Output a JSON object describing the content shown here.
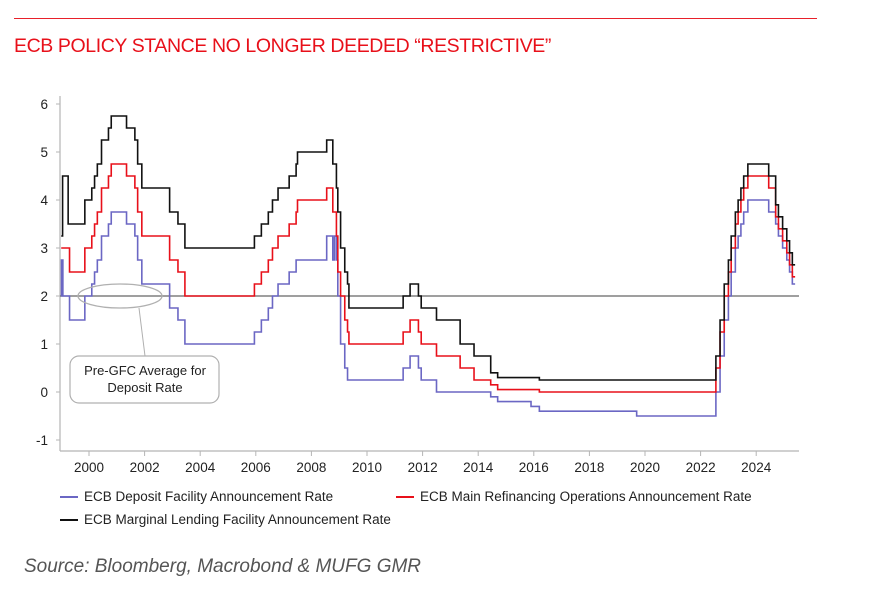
{
  "header": {
    "title": "ECB POLICY STANCE NO LONGER DEEDED “RESTRICTIVE”"
  },
  "source": "Source: Bloomberg, Macrobond & MUFG GMR",
  "annotation": {
    "line1": "Pre-GFC Average for",
    "line2": "Deposit Rate"
  },
  "chart_data": {
    "type": "line",
    "title": "ECB POLICY STANCE NO LONGER DEEDED “RESTRICTIVE”",
    "xlabel": "",
    "ylabel": "",
    "xlim": [
      1999.0,
      2025.4
    ],
    "ylim": [
      -1.3,
      6.2
    ],
    "xticks": [
      2000,
      2002,
      2004,
      2006,
      2008,
      2010,
      2012,
      2014,
      2016,
      2018,
      2020,
      2022,
      2024
    ],
    "yticks": [
      -1,
      0,
      1,
      2,
      3,
      4,
      5,
      6
    ],
    "reference_line": {
      "y": 2.0,
      "label": "Pre-GFC Average for Deposit Rate"
    },
    "legend_position": "bottom",
    "series": [
      {
        "name": "ECB Deposit Facility Announcement Rate",
        "color": "#6b67c4",
        "steps": [
          [
            1999.0,
            2.0
          ],
          [
            1999.01,
            2.75
          ],
          [
            1999.06,
            2.0
          ],
          [
            1999.3,
            1.5
          ],
          [
            1999.85,
            2.0
          ],
          [
            2000.1,
            2.25
          ],
          [
            2000.2,
            2.5
          ],
          [
            2000.3,
            2.75
          ],
          [
            2000.45,
            3.25
          ],
          [
            2000.7,
            3.5
          ],
          [
            2000.8,
            3.75
          ],
          [
            2001.35,
            3.5
          ],
          [
            2001.65,
            3.25
          ],
          [
            2001.75,
            2.75
          ],
          [
            2001.9,
            2.25
          ],
          [
            2002.9,
            1.75
          ],
          [
            2003.2,
            1.5
          ],
          [
            2003.45,
            1.0
          ],
          [
            2005.95,
            1.25
          ],
          [
            2006.2,
            1.5
          ],
          [
            2006.45,
            1.75
          ],
          [
            2006.6,
            2.0
          ],
          [
            2006.8,
            2.25
          ],
          [
            2007.2,
            2.5
          ],
          [
            2007.45,
            2.75
          ],
          [
            2008.55,
            3.25
          ],
          [
            2008.77,
            2.75
          ],
          [
            2008.83,
            3.25
          ],
          [
            2008.9,
            2.75
          ],
          [
            2008.95,
            2.0
          ],
          [
            2009.05,
            1.0
          ],
          [
            2009.2,
            0.5
          ],
          [
            2009.3,
            0.25
          ],
          [
            2011.3,
            0.5
          ],
          [
            2011.55,
            0.75
          ],
          [
            2011.85,
            0.5
          ],
          [
            2011.95,
            0.25
          ],
          [
            2012.5,
            0.0
          ],
          [
            2014.45,
            -0.1
          ],
          [
            2014.7,
            -0.2
          ],
          [
            2015.9,
            -0.3
          ],
          [
            2016.2,
            -0.4
          ],
          [
            2019.7,
            -0.5
          ],
          [
            2022.55,
            0.0
          ],
          [
            2022.7,
            0.75
          ],
          [
            2022.85,
            1.5
          ],
          [
            2023.0,
            2.0
          ],
          [
            2023.1,
            2.5
          ],
          [
            2023.25,
            3.0
          ],
          [
            2023.35,
            3.25
          ],
          [
            2023.45,
            3.5
          ],
          [
            2023.55,
            3.75
          ],
          [
            2023.7,
            4.0
          ],
          [
            2024.45,
            3.75
          ],
          [
            2024.7,
            3.5
          ],
          [
            2024.8,
            3.25
          ],
          [
            2024.95,
            3.0
          ],
          [
            2025.1,
            2.75
          ],
          [
            2025.2,
            2.5
          ],
          [
            2025.3,
            2.25
          ]
        ]
      },
      {
        "name": "ECB Main Refinancing Operations Announcement Rate",
        "color": "#e8101a",
        "steps": [
          [
            1999.0,
            3.0
          ],
          [
            1999.3,
            2.5
          ],
          [
            1999.85,
            3.0
          ],
          [
            2000.1,
            3.25
          ],
          [
            2000.2,
            3.5
          ],
          [
            2000.3,
            3.75
          ],
          [
            2000.45,
            4.25
          ],
          [
            2000.7,
            4.5
          ],
          [
            2000.8,
            4.75
          ],
          [
            2001.35,
            4.5
          ],
          [
            2001.65,
            4.25
          ],
          [
            2001.75,
            3.75
          ],
          [
            2001.9,
            3.25
          ],
          [
            2002.9,
            2.75
          ],
          [
            2003.2,
            2.5
          ],
          [
            2003.45,
            2.0
          ],
          [
            2005.95,
            2.25
          ],
          [
            2006.2,
            2.5
          ],
          [
            2006.45,
            2.75
          ],
          [
            2006.6,
            3.0
          ],
          [
            2006.8,
            3.25
          ],
          [
            2007.2,
            3.5
          ],
          [
            2007.45,
            3.75
          ],
          [
            2007.5,
            4.0
          ],
          [
            2008.55,
            4.25
          ],
          [
            2008.77,
            3.75
          ],
          [
            2008.9,
            3.25
          ],
          [
            2008.95,
            2.5
          ],
          [
            2009.05,
            2.0
          ],
          [
            2009.2,
            1.5
          ],
          [
            2009.3,
            1.25
          ],
          [
            2009.35,
            1.0
          ],
          [
            2011.3,
            1.25
          ],
          [
            2011.55,
            1.5
          ],
          [
            2011.85,
            1.25
          ],
          [
            2011.95,
            1.0
          ],
          [
            2012.5,
            0.75
          ],
          [
            2013.35,
            0.5
          ],
          [
            2013.85,
            0.25
          ],
          [
            2014.45,
            0.15
          ],
          [
            2014.7,
            0.05
          ],
          [
            2016.2,
            0.0
          ],
          [
            2022.55,
            0.5
          ],
          [
            2022.7,
            1.25
          ],
          [
            2022.85,
            2.0
          ],
          [
            2023.0,
            2.5
          ],
          [
            2023.1,
            3.0
          ],
          [
            2023.25,
            3.5
          ],
          [
            2023.35,
            3.75
          ],
          [
            2023.45,
            4.0
          ],
          [
            2023.55,
            4.25
          ],
          [
            2023.7,
            4.5
          ],
          [
            2024.45,
            4.25
          ],
          [
            2024.7,
            3.65
          ],
          [
            2024.8,
            3.4
          ],
          [
            2024.95,
            3.15
          ],
          [
            2025.1,
            2.9
          ],
          [
            2025.2,
            2.65
          ],
          [
            2025.3,
            2.4
          ]
        ]
      },
      {
        "name": "ECB Marginal Lending Facility Announcement Rate",
        "color": "#111111",
        "steps": [
          [
            1999.0,
            3.25
          ],
          [
            1999.05,
            4.5
          ],
          [
            1999.25,
            3.5
          ],
          [
            1999.85,
            4.0
          ],
          [
            2000.1,
            4.25
          ],
          [
            2000.2,
            4.5
          ],
          [
            2000.3,
            4.75
          ],
          [
            2000.45,
            5.25
          ],
          [
            2000.7,
            5.5
          ],
          [
            2000.8,
            5.75
          ],
          [
            2001.35,
            5.5
          ],
          [
            2001.65,
            5.25
          ],
          [
            2001.75,
            4.75
          ],
          [
            2001.9,
            4.25
          ],
          [
            2002.9,
            3.75
          ],
          [
            2003.2,
            3.5
          ],
          [
            2003.45,
            3.0
          ],
          [
            2005.95,
            3.25
          ],
          [
            2006.2,
            3.5
          ],
          [
            2006.45,
            3.75
          ],
          [
            2006.6,
            4.0
          ],
          [
            2006.8,
            4.25
          ],
          [
            2007.2,
            4.5
          ],
          [
            2007.45,
            4.75
          ],
          [
            2007.5,
            5.0
          ],
          [
            2008.55,
            5.25
          ],
          [
            2008.77,
            4.75
          ],
          [
            2008.9,
            4.25
          ],
          [
            2008.95,
            3.75
          ],
          [
            2009.05,
            3.0
          ],
          [
            2009.2,
            2.5
          ],
          [
            2009.3,
            2.25
          ],
          [
            2009.35,
            1.75
          ],
          [
            2011.3,
            2.0
          ],
          [
            2011.55,
            2.25
          ],
          [
            2011.85,
            2.0
          ],
          [
            2011.95,
            1.75
          ],
          [
            2012.5,
            1.5
          ],
          [
            2013.35,
            1.0
          ],
          [
            2013.85,
            0.75
          ],
          [
            2014.45,
            0.4
          ],
          [
            2014.7,
            0.3
          ],
          [
            2016.2,
            0.25
          ],
          [
            2022.55,
            0.75
          ],
          [
            2022.7,
            1.5
          ],
          [
            2022.85,
            2.25
          ],
          [
            2023.0,
            2.75
          ],
          [
            2023.1,
            3.25
          ],
          [
            2023.25,
            3.75
          ],
          [
            2023.35,
            4.0
          ],
          [
            2023.45,
            4.25
          ],
          [
            2023.55,
            4.5
          ],
          [
            2023.7,
            4.75
          ],
          [
            2024.45,
            4.5
          ],
          [
            2024.7,
            3.9
          ],
          [
            2024.8,
            3.65
          ],
          [
            2024.95,
            3.4
          ],
          [
            2025.1,
            3.15
          ],
          [
            2025.2,
            2.9
          ],
          [
            2025.3,
            2.65
          ]
        ]
      }
    ],
    "end_x": 2025.4
  }
}
